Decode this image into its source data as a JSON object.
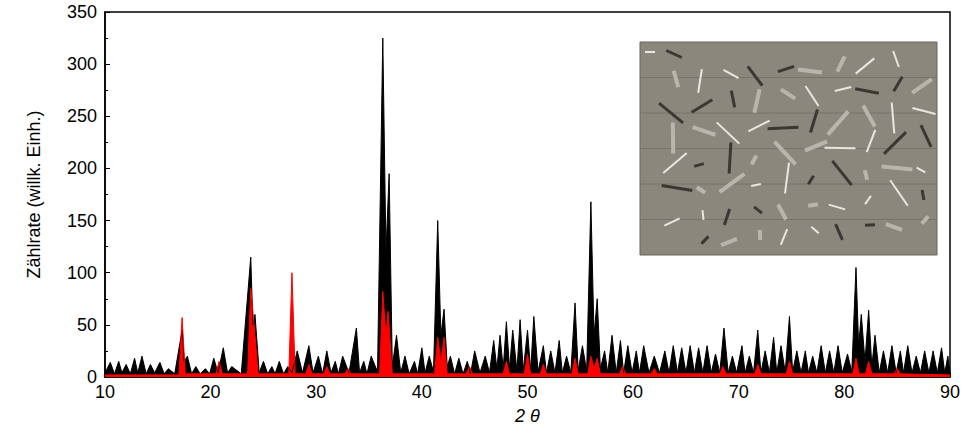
{
  "chart_data": {
    "type": "line",
    "x_label": "2 θ",
    "y_label": "Zählrate (willk. Einh.)",
    "xlim": [
      10,
      90
    ],
    "xticks": [
      10,
      20,
      30,
      40,
      50,
      60,
      70,
      80,
      90
    ],
    "ylim": [
      0,
      350
    ],
    "yticks": [
      0,
      50,
      100,
      150,
      200,
      250,
      300,
      350
    ],
    "grid": false,
    "series": [
      {
        "color": "#000000",
        "points": [
          [
            10,
            4
          ],
          [
            10.5,
            14
          ],
          [
            10.9,
            3
          ],
          [
            11.3,
            15
          ],
          [
            11.6,
            4
          ],
          [
            12,
            12
          ],
          [
            12.4,
            3
          ],
          [
            12.8,
            18
          ],
          [
            13.1,
            4
          ],
          [
            13.5,
            20
          ],
          [
            13.9,
            3
          ],
          [
            14.3,
            12
          ],
          [
            14.7,
            4
          ],
          [
            15.2,
            14
          ],
          [
            15.6,
            3
          ],
          [
            16,
            8
          ],
          [
            16.6,
            3
          ],
          [
            17.3,
            45
          ],
          [
            17.5,
            15
          ],
          [
            17.8,
            20
          ],
          [
            18.2,
            3
          ],
          [
            18.6,
            10
          ],
          [
            19,
            3
          ],
          [
            19.5,
            8
          ],
          [
            19.9,
            3
          ],
          [
            20.3,
            18
          ],
          [
            20.7,
            4
          ],
          [
            21.2,
            28
          ],
          [
            21.6,
            4
          ],
          [
            22,
            10
          ],
          [
            22.9,
            3
          ],
          [
            23.8,
            115
          ],
          [
            24,
            50
          ],
          [
            24.2,
            60
          ],
          [
            24.6,
            4
          ],
          [
            25,
            15
          ],
          [
            25.4,
            3
          ],
          [
            25.8,
            10
          ],
          [
            26.1,
            3
          ],
          [
            26.5,
            15
          ],
          [
            26.9,
            3
          ],
          [
            27.3,
            10
          ],
          [
            27.7,
            4
          ],
          [
            28.2,
            25
          ],
          [
            28.7,
            4
          ],
          [
            29.3,
            30
          ],
          [
            29.7,
            4
          ],
          [
            30.2,
            20
          ],
          [
            30.6,
            3
          ],
          [
            31,
            25
          ],
          [
            31.4,
            4
          ],
          [
            31.8,
            15
          ],
          [
            32.1,
            3
          ],
          [
            32.5,
            20
          ],
          [
            33.1,
            4
          ],
          [
            33.8,
            47
          ],
          [
            34.1,
            4
          ],
          [
            34.5,
            15
          ],
          [
            34.8,
            3
          ],
          [
            35.2,
            20
          ],
          [
            35.8,
            5
          ],
          [
            36.3,
            325
          ],
          [
            36.6,
            120
          ],
          [
            36.9,
            195
          ],
          [
            37.2,
            10
          ],
          [
            37.6,
            40
          ],
          [
            38,
            4
          ],
          [
            38.4,
            20
          ],
          [
            38.8,
            3
          ],
          [
            39.3,
            15
          ],
          [
            39.6,
            3
          ],
          [
            40,
            28
          ],
          [
            40.3,
            4
          ],
          [
            40.7,
            20
          ],
          [
            41.1,
            5
          ],
          [
            41.5,
            150
          ],
          [
            41.8,
            40
          ],
          [
            42.1,
            65
          ],
          [
            42.4,
            10
          ],
          [
            42.7,
            20
          ],
          [
            43.1,
            3
          ],
          [
            43.5,
            18
          ],
          [
            43.9,
            3
          ],
          [
            44.3,
            15
          ],
          [
            44.6,
            3
          ],
          [
            45,
            25
          ],
          [
            45.5,
            4
          ],
          [
            46,
            20
          ],
          [
            46.4,
            4
          ],
          [
            46.8,
            35
          ],
          [
            47.1,
            8
          ],
          [
            47.4,
            40
          ],
          [
            47.7,
            8
          ],
          [
            48,
            53
          ],
          [
            48.3,
            8
          ],
          [
            48.6,
            45
          ],
          [
            49,
            6
          ],
          [
            49.3,
            55
          ],
          [
            49.6,
            6
          ],
          [
            50,
            45
          ],
          [
            50.3,
            6
          ],
          [
            50.6,
            58
          ],
          [
            51,
            5
          ],
          [
            51.5,
            30
          ],
          [
            51.8,
            4
          ],
          [
            52.2,
            25
          ],
          [
            52.6,
            4
          ],
          [
            53,
            35
          ],
          [
            53.3,
            4
          ],
          [
            53.7,
            20
          ],
          [
            54.1,
            4
          ],
          [
            54.5,
            71
          ],
          [
            54.8,
            6
          ],
          [
            55.2,
            30
          ],
          [
            55.6,
            6
          ],
          [
            56,
            168
          ],
          [
            56.3,
            40
          ],
          [
            56.6,
            75
          ],
          [
            56.9,
            8
          ],
          [
            57.3,
            25
          ],
          [
            57.6,
            4
          ],
          [
            58,
            40
          ],
          [
            58.4,
            4
          ],
          [
            58.8,
            35
          ],
          [
            59.1,
            4
          ],
          [
            59.5,
            30
          ],
          [
            59.9,
            4
          ],
          [
            60.3,
            25
          ],
          [
            60.6,
            4
          ],
          [
            61,
            30
          ],
          [
            61.5,
            4
          ],
          [
            62,
            20
          ],
          [
            62.5,
            4
          ],
          [
            63,
            25
          ],
          [
            63.4,
            4
          ],
          [
            63.8,
            30
          ],
          [
            64.2,
            4
          ],
          [
            64.6,
            28
          ],
          [
            65,
            4
          ],
          [
            65.4,
            30
          ],
          [
            65.8,
            4
          ],
          [
            66.2,
            28
          ],
          [
            66.6,
            4
          ],
          [
            67,
            30
          ],
          [
            67.4,
            4
          ],
          [
            67.8,
            22
          ],
          [
            68.2,
            4
          ],
          [
            68.6,
            47
          ],
          [
            69,
            4
          ],
          [
            69.4,
            20
          ],
          [
            69.8,
            4
          ],
          [
            70.3,
            30
          ],
          [
            70.6,
            4
          ],
          [
            71,
            20
          ],
          [
            71.4,
            4
          ],
          [
            71.8,
            45
          ],
          [
            72.1,
            4
          ],
          [
            72.5,
            25
          ],
          [
            72.9,
            4
          ],
          [
            73.3,
            38
          ],
          [
            73.6,
            4
          ],
          [
            74,
            30
          ],
          [
            74.4,
            5
          ],
          [
            74.8,
            58
          ],
          [
            75.1,
            5
          ],
          [
            75.5,
            25
          ],
          [
            75.9,
            4
          ],
          [
            76.3,
            25
          ],
          [
            76.6,
            4
          ],
          [
            77,
            20
          ],
          [
            77.4,
            4
          ],
          [
            77.8,
            30
          ],
          [
            78.2,
            4
          ],
          [
            78.6,
            25
          ],
          [
            79,
            4
          ],
          [
            79.4,
            30
          ],
          [
            79.8,
            4
          ],
          [
            80.3,
            22
          ],
          [
            80.7,
            5
          ],
          [
            81.1,
            105
          ],
          [
            81.35,
            30
          ],
          [
            81.6,
            60
          ],
          [
            81.95,
            15
          ],
          [
            82.3,
            64
          ],
          [
            82.6,
            10
          ],
          [
            82.9,
            40
          ],
          [
            83.3,
            4
          ],
          [
            83.7,
            25
          ],
          [
            84.1,
            4
          ],
          [
            84.5,
            30
          ],
          [
            84.9,
            4
          ],
          [
            85.3,
            25
          ],
          [
            85.6,
            4
          ],
          [
            86,
            30
          ],
          [
            86.4,
            4
          ],
          [
            86.8,
            20
          ],
          [
            87.2,
            4
          ],
          [
            87.6,
            25
          ],
          [
            88,
            4
          ],
          [
            88.4,
            25
          ],
          [
            88.8,
            4
          ],
          [
            89.2,
            28
          ],
          [
            89.5,
            4
          ],
          [
            89.8,
            20
          ],
          [
            90,
            4
          ]
        ]
      },
      {
        "color": "#ff0000",
        "points": [
          [
            10,
            2
          ],
          [
            17,
            2
          ],
          [
            17.3,
            57
          ],
          [
            17.6,
            3
          ],
          [
            20.5,
            3
          ],
          [
            20.8,
            15
          ],
          [
            21.1,
            3
          ],
          [
            23.5,
            3
          ],
          [
            23.8,
            85
          ],
          [
            24.2,
            40
          ],
          [
            24.5,
            3
          ],
          [
            27.4,
            3
          ],
          [
            27.7,
            100
          ],
          [
            28,
            3
          ],
          [
            29,
            3
          ],
          [
            29.3,
            12
          ],
          [
            29.6,
            3
          ],
          [
            30.7,
            3
          ],
          [
            31,
            10
          ],
          [
            31.3,
            3
          ],
          [
            32.7,
            3
          ],
          [
            33,
            8
          ],
          [
            33.3,
            3
          ],
          [
            36,
            3
          ],
          [
            36.3,
            82
          ],
          [
            36.6,
            40
          ],
          [
            36.8,
            63
          ],
          [
            37.2,
            3
          ],
          [
            41.2,
            3
          ],
          [
            41.5,
            38
          ],
          [
            41.8,
            15
          ],
          [
            42.1,
            38
          ],
          [
            42.4,
            3
          ],
          [
            44.2,
            3
          ],
          [
            44.5,
            10
          ],
          [
            44.8,
            3
          ],
          [
            47.7,
            3
          ],
          [
            48,
            15
          ],
          [
            48.3,
            3
          ],
          [
            49.7,
            3
          ],
          [
            50,
            22
          ],
          [
            50.3,
            3
          ],
          [
            51.2,
            3
          ],
          [
            51.5,
            12
          ],
          [
            51.8,
            3
          ],
          [
            54.2,
            3
          ],
          [
            54.5,
            18
          ],
          [
            54.8,
            3
          ],
          [
            55.7,
            3
          ],
          [
            56,
            20
          ],
          [
            56.3,
            8
          ],
          [
            56.6,
            18
          ],
          [
            56.9,
            3
          ],
          [
            58.7,
            3
          ],
          [
            59,
            10
          ],
          [
            59.3,
            3
          ],
          [
            61.7,
            3
          ],
          [
            62,
            8
          ],
          [
            62.3,
            3
          ],
          [
            68.2,
            3
          ],
          [
            68.5,
            10
          ],
          [
            68.8,
            3
          ],
          [
            71.5,
            3
          ],
          [
            71.8,
            12
          ],
          [
            72.1,
            3
          ],
          [
            74.5,
            3
          ],
          [
            74.8,
            15
          ],
          [
            75.1,
            3
          ],
          [
            80.8,
            3
          ],
          [
            81.1,
            18
          ],
          [
            81.4,
            3
          ],
          [
            82,
            3
          ],
          [
            82.3,
            15
          ],
          [
            82.6,
            3
          ],
          [
            84.7,
            3
          ],
          [
            85,
            8
          ],
          [
            85.3,
            3
          ],
          [
            90,
            2
          ]
        ]
      }
    ]
  }
}
